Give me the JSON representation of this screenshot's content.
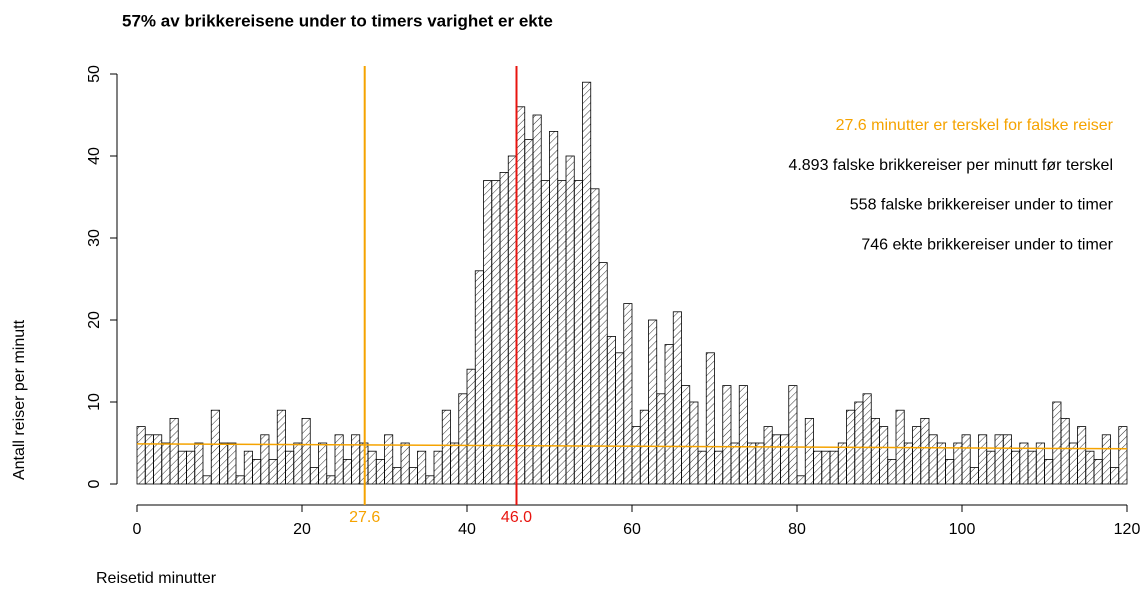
{
  "chart_data": {
    "type": "histogram",
    "title": "57% av brikkereisene under to timers varighet er ekte",
    "x_label": "Reisetid minutter",
    "y_label": "Antall reiser per minutt",
    "bins": [
      0,
      1,
      2,
      3,
      4,
      5,
      6,
      7,
      8,
      9,
      10,
      11,
      12,
      13,
      14,
      15,
      16,
      17,
      18,
      19,
      20,
      21,
      22,
      23,
      24,
      25,
      26,
      27,
      28,
      29,
      30,
      31,
      32,
      33,
      34,
      35,
      36,
      37,
      38,
      39,
      40,
      41,
      42,
      43,
      44,
      45,
      46,
      47,
      48,
      49,
      50,
      51,
      52,
      53,
      54,
      55,
      56,
      57,
      58,
      59,
      60,
      61,
      62,
      63,
      64,
      65,
      66,
      67,
      68,
      69,
      70,
      71,
      72,
      73,
      74,
      75,
      76,
      77,
      78,
      79,
      80,
      81,
      82,
      83,
      84,
      85,
      86,
      87,
      88,
      89,
      90,
      91,
      92,
      93,
      94,
      95,
      96,
      97,
      98,
      99,
      100,
      101,
      102,
      103,
      104,
      105,
      106,
      107,
      108,
      109,
      110,
      111,
      112,
      113,
      114,
      115,
      116,
      117,
      118,
      119,
      120
    ],
    "counts": [
      7,
      6,
      6,
      5,
      8,
      4,
      4,
      5,
      1,
      9,
      5,
      5,
      1,
      4,
      3,
      6,
      3,
      9,
      4,
      5,
      8,
      2,
      5,
      1,
      6,
      3,
      6,
      5,
      4,
      3,
      6,
      2,
      5,
      2,
      4,
      1,
      4,
      9,
      5,
      11,
      14,
      26,
      37,
      37,
      38,
      40,
      46,
      42,
      45,
      37,
      43,
      37,
      40,
      37,
      49,
      36,
      27,
      18,
      16,
      22,
      7,
      9,
      20,
      11,
      17,
      21,
      12,
      10,
      4,
      16,
      4,
      12,
      5,
      12,
      5,
      5,
      7,
      6,
      6,
      12,
      1,
      8,
      4,
      4,
      4,
      5,
      9,
      10,
      11,
      8,
      7,
      3,
      9,
      5,
      7,
      8,
      6,
      5,
      3,
      5,
      6,
      2,
      6,
      4,
      6,
      6,
      4,
      5,
      4,
      5,
      3,
      10,
      8,
      5,
      7,
      4,
      3,
      6,
      2,
      7
    ],
    "xlim": [
      0,
      120
    ],
    "ylim": [
      0,
      50
    ],
    "xticks": [
      0,
      20,
      40,
      60,
      80,
      100,
      120
    ],
    "yticks": [
      0,
      10,
      20,
      30,
      40,
      50
    ],
    "vlines": [
      {
        "x": 27.6,
        "color": "#f5a300"
      },
      {
        "x": 46,
        "label": "46.0",
        "color": "#e8140f"
      }
    ],
    "trend": {
      "x": [
        0,
        120
      ],
      "y": [
        4.9,
        4.3
      ],
      "color": "#f5a300"
    },
    "annotations": [
      {
        "text": "27.6 minutter er terskel for falske reiser",
        "color": "#f5a300"
      },
      {
        "text": "4.893 falske brikkereiser per minutt før terskel",
        "color": "#000000"
      },
      {
        "text": "558 falske brikkereiser under to timer",
        "color": "#000000"
      },
      {
        "text": "746 ekte brikkereiser under to timer",
        "color": "#000000"
      }
    ]
  }
}
